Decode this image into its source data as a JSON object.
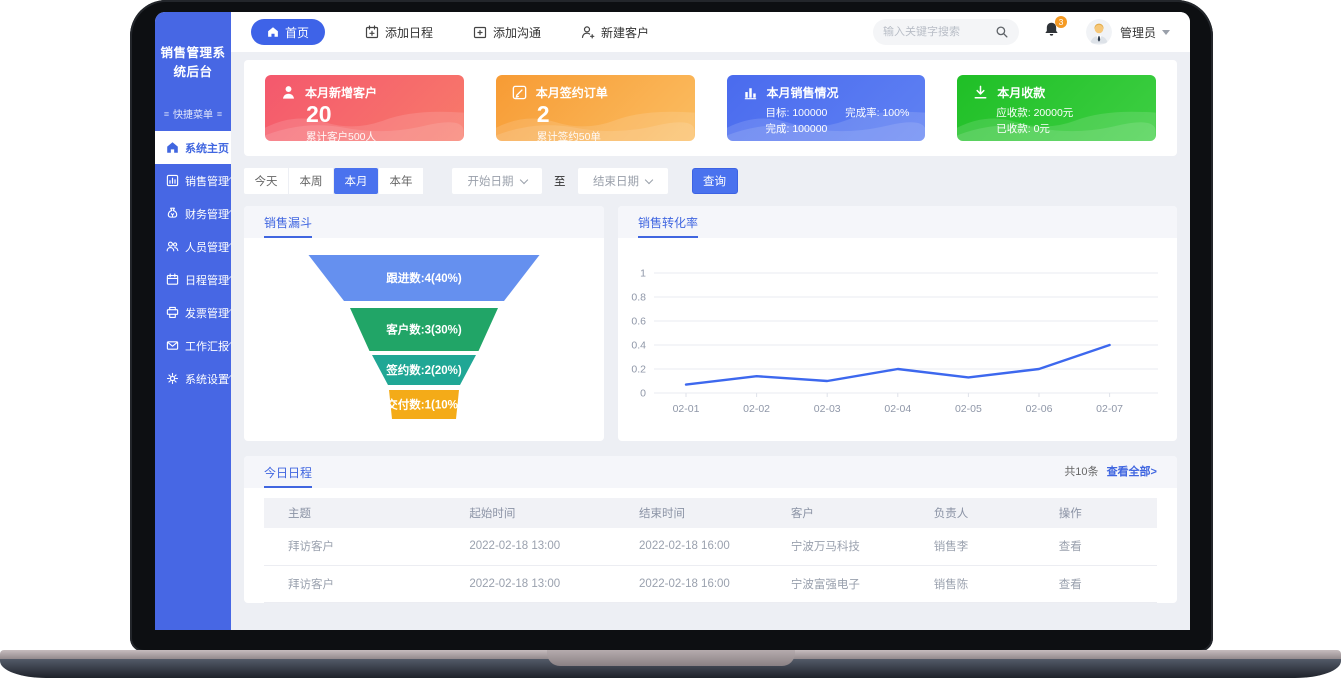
{
  "app": {
    "logo": "销售管理系统后台",
    "quick_menu": "快捷菜单"
  },
  "sidebar": {
    "items": [
      {
        "label": "系统主页",
        "active": true
      },
      {
        "label": "销售管理"
      },
      {
        "label": "财务管理"
      },
      {
        "label": "人员管理"
      },
      {
        "label": "日程管理"
      },
      {
        "label": "发票管理"
      },
      {
        "label": "工作汇报"
      },
      {
        "label": "系统设置"
      }
    ]
  },
  "topbar": {
    "home": "首页",
    "add_schedule": "添加日程",
    "add_comm": "添加沟通",
    "new_customer": "新建客户",
    "search_placeholder": "输入关键字搜索",
    "notification_count": "3",
    "username": "管理员"
  },
  "cards": [
    {
      "title": "本月新增客户",
      "value": "20",
      "subtitle": "累计客户500人",
      "color": "#f4586d"
    },
    {
      "title": "本月签约订单",
      "value": "2",
      "subtitle": "累计签约50单",
      "color": "#f79b34"
    },
    {
      "title": "本月销售情况",
      "kv": [
        "目标: 100000",
        "完成率: 100%",
        "完成: 100000"
      ],
      "color": "#4a6bee"
    },
    {
      "title": "本月收款",
      "kv": [
        "应收款: 20000元",
        "已收款: 0元"
      ],
      "color": "#1fbf26"
    }
  ],
  "filters": {
    "tabs": [
      "今天",
      "本周",
      "本月",
      "本年"
    ],
    "active_tab": "本月",
    "start_placeholder": "开始日期",
    "to_label": "至",
    "end_placeholder": "结束日期",
    "query_label": "查询"
  },
  "chart_data": [
    {
      "type": "funnel",
      "title": "销售漏斗",
      "items": [
        {
          "label": "跟进数",
          "value": 4,
          "percent": "40%",
          "display": "跟进数:4(40%)",
          "color": "#6590ef"
        },
        {
          "label": "客户数",
          "value": 3,
          "percent": "30%",
          "display": "客户数:3(30%)",
          "color": "#21a567"
        },
        {
          "label": "签约数",
          "value": 2,
          "percent": "20%",
          "display": "签约数:2(20%)",
          "color": "#20a795"
        },
        {
          "label": "交付数",
          "value": 1,
          "percent": "10%",
          "display": "交付数:1(10%)",
          "color": "#f4ab18"
        }
      ]
    },
    {
      "type": "line",
      "title": "销售转化率",
      "x": [
        "02-01",
        "02-02",
        "02-03",
        "02-04",
        "02-05",
        "02-06",
        "02-07"
      ],
      "values": [
        0.07,
        0.14,
        0.1,
        0.2,
        0.13,
        0.2,
        0.4
      ],
      "yticks": [
        0,
        0.2,
        0.4,
        0.6,
        0.8,
        1
      ],
      "ylim": [
        0,
        1
      ],
      "line_color": "#3d68ee",
      "grid": true,
      "legend": null
    }
  ],
  "schedule": {
    "title": "今日日程",
    "total": "共10条",
    "view_all": "查看全部>",
    "columns": [
      "主题",
      "起始时间",
      "结束时间",
      "客户",
      "负责人",
      "操作"
    ],
    "rows": [
      [
        "拜访客户",
        "2022-02-18 13:00",
        "2022-02-18 16:00",
        "宁波万马科技",
        "销售李",
        "查看"
      ],
      [
        "拜访客户",
        "2022-02-18 13:00",
        "2022-02-18 16:00",
        "宁波富强电子",
        "销售陈",
        "查看"
      ]
    ]
  }
}
